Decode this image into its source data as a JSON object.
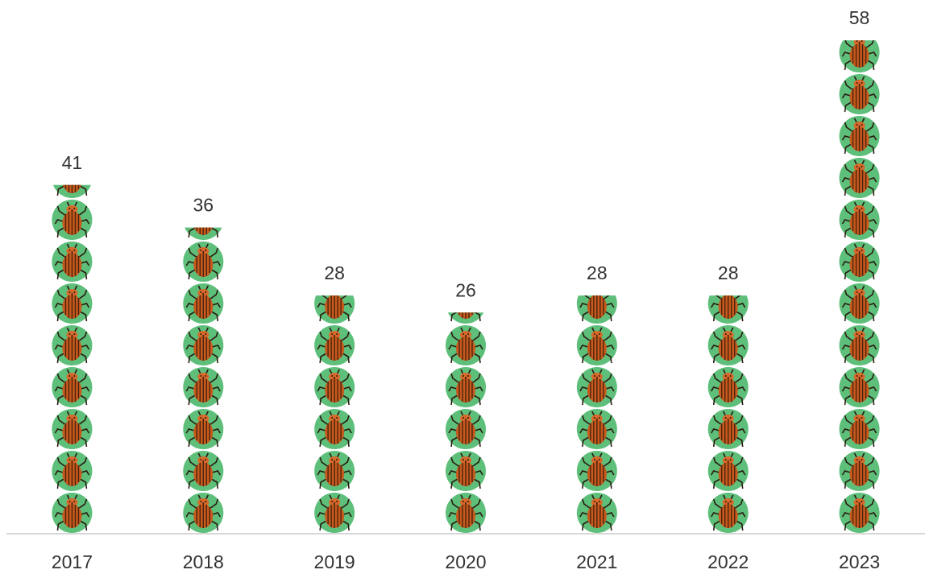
{
  "chart_data": {
    "type": "bar",
    "categories": [
      "2017",
      "2018",
      "2019",
      "2020",
      "2021",
      "2022",
      "2023"
    ],
    "values": [
      41,
      36,
      28,
      26,
      28,
      28,
      58
    ],
    "color": "#5dbf7a",
    "ylim": [
      0,
      60
    ]
  }
}
